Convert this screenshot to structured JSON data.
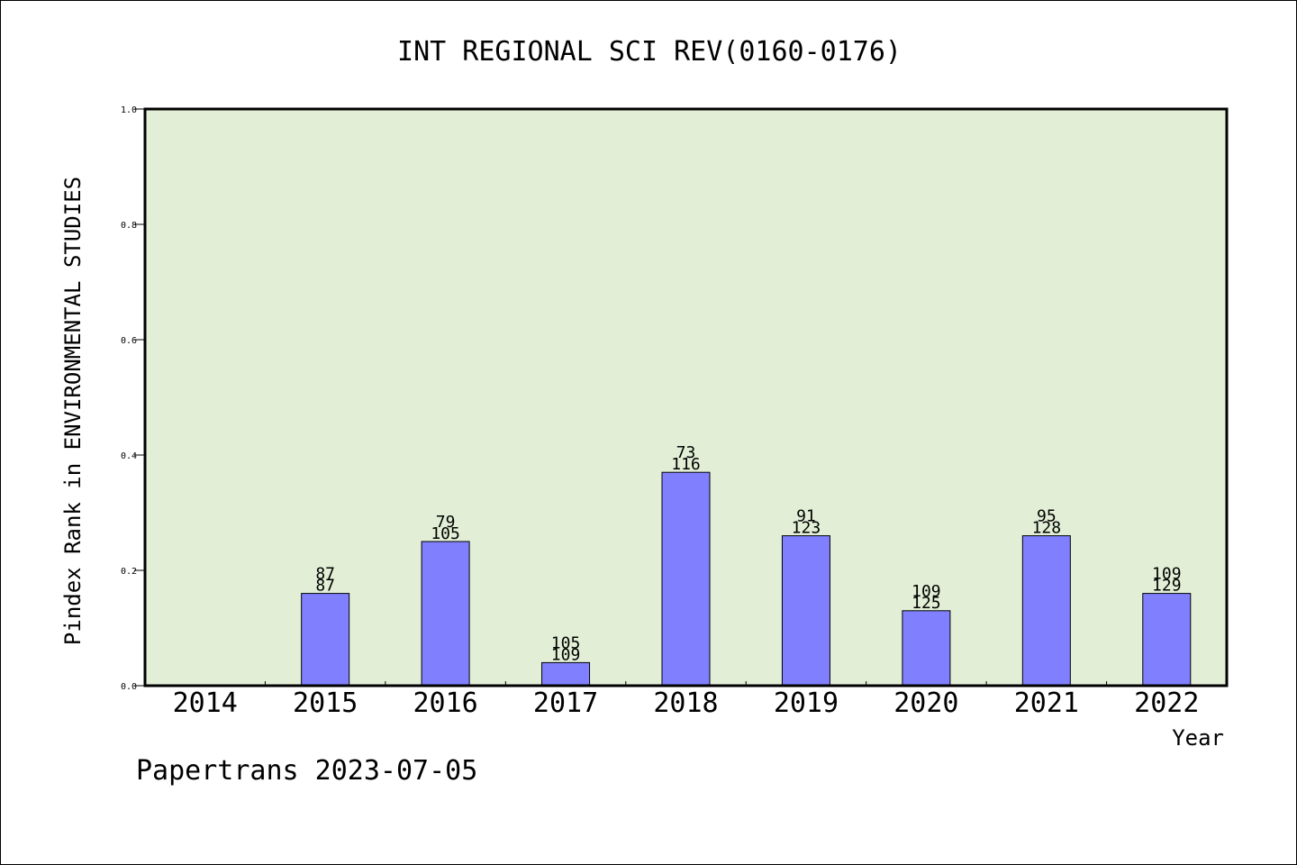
{
  "chart_data": {
    "type": "bar",
    "title": "INT REGIONAL SCI REV(0160-0176)",
    "xlabel": "Year",
    "ylabel": "Pindex Rank in ENVIRONMENTAL STUDIES",
    "categories": [
      "2014",
      "2015",
      "2016",
      "2017",
      "2018",
      "2019",
      "2020",
      "2021",
      "2022"
    ],
    "values": [
      0,
      0.16,
      0.25,
      0.04,
      0.37,
      0.26,
      0.13,
      0.26,
      0.16
    ],
    "labels_top": [
      "",
      "87",
      "79",
      "105",
      "73",
      "91",
      "109",
      "95",
      "109"
    ],
    "labels_bottom": [
      "",
      "87",
      "105",
      "109",
      "116",
      "123",
      "125",
      "128",
      "129"
    ],
    "ylim": [
      0,
      1.0
    ],
    "yticks": [
      "0.0",
      "0.2",
      "0.4",
      "0.6",
      "0.8",
      "1.0"
    ],
    "grid": false,
    "colors": {
      "plot_bg": "#e2efd6",
      "bar": "#8080ff"
    }
  },
  "footer": {
    "text": "Papertrans 2023-07-05"
  }
}
